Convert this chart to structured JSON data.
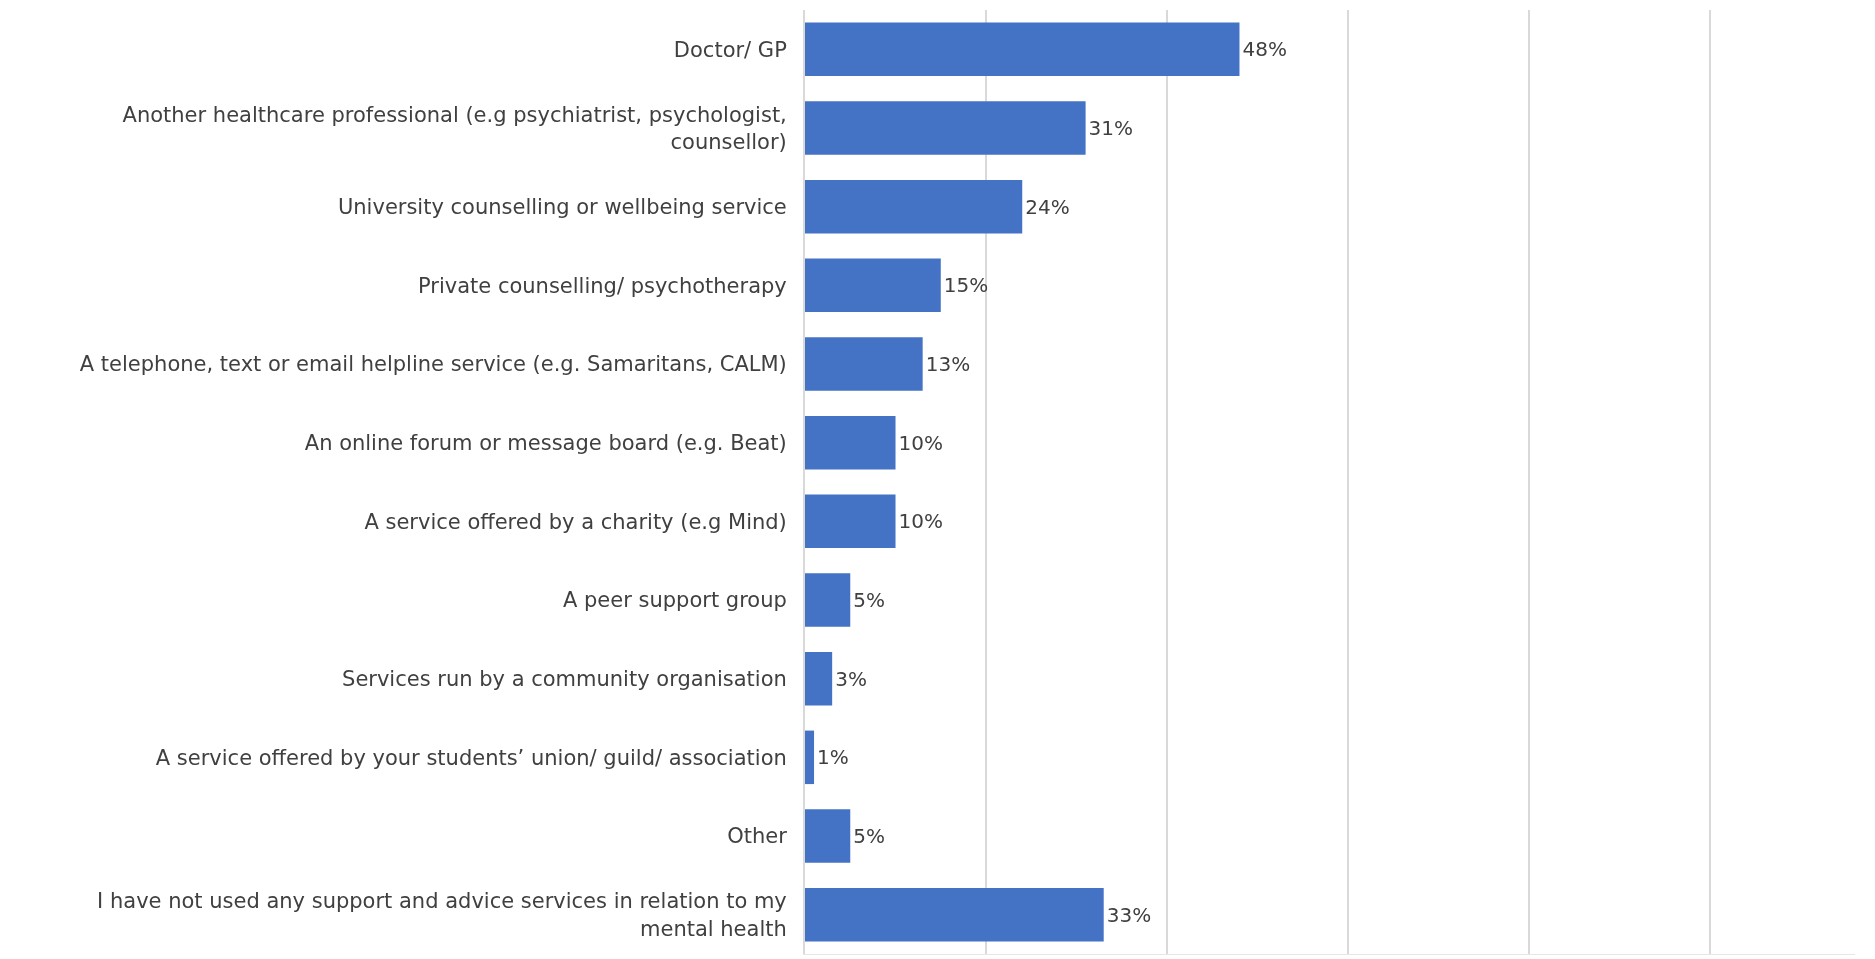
{
  "chart_data": {
    "type": "bar",
    "orientation": "horizontal",
    "categories": [
      "Doctor/ GP",
      "Another healthcare professional (e.g psychiatrist, psychologist, counsellor)",
      "University counselling or wellbeing service",
      "Private counselling/ psychotherapy",
      "A telephone, text or email helpline service (e.g. Samaritans, CALM)",
      "An online forum or message board (e.g. Beat)",
      "A service offered by a charity (e.g Mind)",
      "A peer support group",
      "Services run by a community organisation",
      "A service offered by your students’ union/ guild/ association",
      "Other",
      "I have not used any support and advice services in relation to my mental health"
    ],
    "values": [
      48,
      31,
      24,
      15,
      13,
      10,
      10,
      5,
      3,
      1,
      5,
      33
    ],
    "value_labels": [
      "48%",
      "31%",
      "24%",
      "15%",
      "13%",
      "10%",
      "10%",
      "5%",
      "3%",
      "1%",
      "5%",
      "33%"
    ],
    "color": "#4472c4",
    "xlim": [
      0,
      116
    ],
    "xticks": [
      {
        "value": 0,
        "label": null
      },
      {
        "value": 20,
        "label": null
      },
      {
        "value": 40,
        "label": null
      },
      {
        "value": 60,
        "label": null
      },
      {
        "value": 80,
        "label": null
      },
      {
        "value": 100,
        "label": null
      }
    ],
    "grid": "x",
    "tick_labels": "y"
  }
}
